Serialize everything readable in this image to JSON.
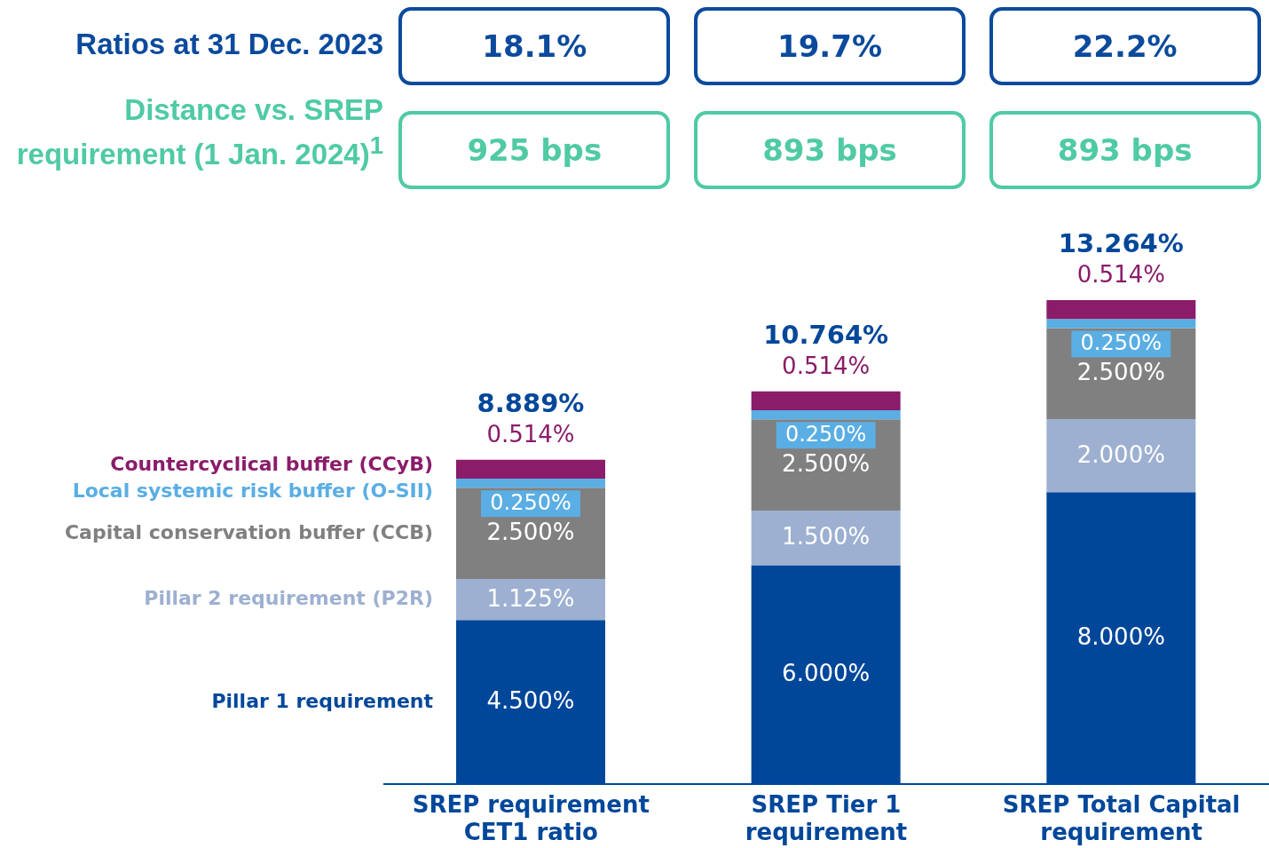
{
  "chart_data": {
    "type": "bar",
    "stacked": true,
    "legend": "left",
    "categories": [
      "SREP requirement CET1 ratio",
      "SREP Tier 1 requirement",
      "SREP Total Capital requirement"
    ],
    "series": [
      {
        "name": "Pillar 1 requirement",
        "color": "#00479a",
        "values": [
          4.5,
          6.0,
          8.0
        ],
        "value_labels": [
          "4.500%",
          "6.000%",
          "8.000%"
        ]
      },
      {
        "name": "Pillar 2 requirement (P2R)",
        "color": "#9db0d1",
        "values": [
          1.125,
          1.5,
          2.0
        ],
        "value_labels": [
          "1.125%",
          "1.500%",
          "2.000%"
        ]
      },
      {
        "name": "Capital conservation buffer (CCB)",
        "color": "#808080",
        "values": [
          2.5,
          2.5,
          2.5
        ],
        "value_labels": [
          "2.500%",
          "2.500%",
          "2.500%"
        ]
      },
      {
        "name": "Local systemic risk buffer (O-SII)",
        "color": "#5aaee3",
        "values": [
          0.25,
          0.25,
          0.25
        ],
        "value_labels": [
          "0.250%",
          "0.250%",
          "0.250%"
        ]
      },
      {
        "name": "Countercyclical buffer (CCyB)",
        "color": "#8a1c6a",
        "values": [
          0.514,
          0.514,
          0.514
        ],
        "value_labels": [
          "0.514%",
          "0.514%",
          "0.514%"
        ]
      }
    ],
    "totals": [
      "8.889%",
      "10.764%",
      "13.264%"
    ],
    "annotations": [
      "Ratios at 31 Dec. 2023",
      "18.1%",
      "19.7%",
      "22.2%",
      "Distance vs. SREP requirement (1 Jan. 2024)$^{1}$",
      "925 bps",
      "893 bps",
      "893 bps"
    ]
  }
}
